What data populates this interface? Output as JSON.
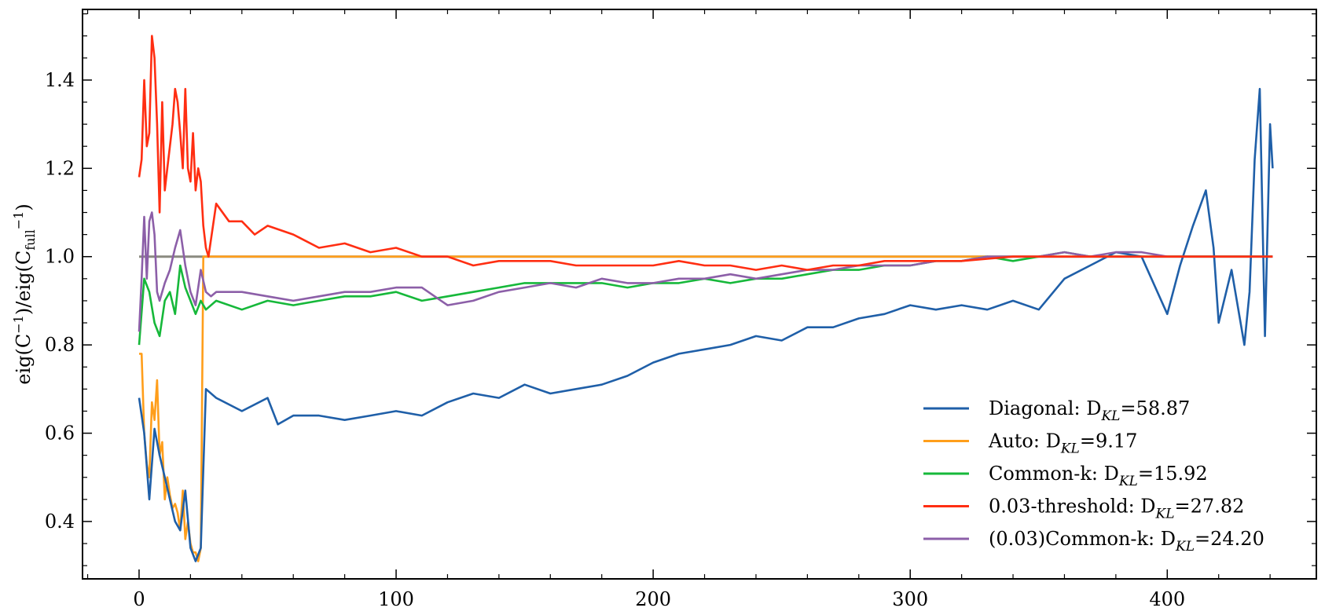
{
  "chart_data": {
    "type": "line",
    "title": "",
    "xlabel": "",
    "ylabel": "eig(C⁻¹)/eig(C_full⁻¹)",
    "ylabel_parts": {
      "main": "eig(C",
      "sup1": "−1",
      "mid": ")/eig(C",
      "sub": "full",
      "sup2": "−1",
      "end": ")"
    },
    "xlim": [
      -22,
      458
    ],
    "ylim": [
      0.27,
      1.56
    ],
    "xticks": [
      0,
      100,
      200,
      300,
      400
    ],
    "yticks": [
      0.4,
      0.6,
      0.8,
      1.0,
      1.2,
      1.4
    ],
    "xtick_labels": [
      "0",
      "100",
      "200",
      "300",
      "400"
    ],
    "ytick_labels": [
      "0.4",
      "0.6",
      "0.8",
      "1.0",
      "1.2",
      "1.4"
    ],
    "grid": false,
    "legend_position": "lower-right",
    "legend": [
      {
        "prefix": "Diagonal: D",
        "sub": "KL",
        "suffix": "=58.87",
        "color": "#1f5fa8"
      },
      {
        "prefix": "Auto: D",
        "sub": "KL",
        "suffix": "=9.17",
        "color": "#ff9e1b"
      },
      {
        "prefix": "Common-k: D",
        "sub": "KL",
        "suffix": "=15.92",
        "color": "#16b83a"
      },
      {
        "prefix": "0.03-threshold: D",
        "sub": "KL",
        "suffix": "=27.82",
        "color": "#ff2e12"
      },
      {
        "prefix": "(0.03)Common-k: D",
        "sub": "KL",
        "suffix": "=24.20",
        "color": "#8c5fa8"
      }
    ],
    "series": [
      {
        "name": "Diagonal: D_KL=58.87",
        "color": "#1f5fa8",
        "x": [
          0,
          2,
          4,
          6,
          8,
          10,
          12,
          14,
          16,
          18,
          20,
          22,
          24,
          26,
          30,
          40,
          50,
          54,
          60,
          70,
          80,
          90,
          100,
          110,
          120,
          130,
          140,
          150,
          160,
          170,
          180,
          190,
          200,
          210,
          220,
          230,
          240,
          250,
          260,
          270,
          280,
          290,
          300,
          310,
          320,
          330,
          340,
          350,
          360,
          370,
          380,
          390,
          400,
          405,
          410,
          415,
          418,
          420,
          425,
          430,
          432,
          434,
          436,
          438,
          440,
          441
        ],
        "y": [
          0.68,
          0.6,
          0.45,
          0.61,
          0.55,
          0.5,
          0.45,
          0.4,
          0.38,
          0.47,
          0.34,
          0.31,
          0.34,
          0.7,
          0.68,
          0.65,
          0.68,
          0.62,
          0.64,
          0.64,
          0.63,
          0.64,
          0.65,
          0.64,
          0.67,
          0.69,
          0.68,
          0.71,
          0.69,
          0.7,
          0.71,
          0.73,
          0.76,
          0.78,
          0.79,
          0.8,
          0.82,
          0.81,
          0.84,
          0.84,
          0.86,
          0.87,
          0.89,
          0.88,
          0.89,
          0.88,
          0.9,
          0.88,
          0.95,
          0.98,
          1.01,
          1.0,
          0.87,
          0.98,
          1.07,
          1.15,
          1.02,
          0.85,
          0.97,
          0.8,
          0.92,
          1.22,
          1.38,
          0.82,
          1.3,
          1.2
        ]
      },
      {
        "name": "Auto: D_KL=9.17",
        "color": "#ff9e1b",
        "x": [
          0,
          1,
          2,
          3,
          4,
          5,
          6,
          7,
          8,
          9,
          10,
          11,
          12,
          13,
          14,
          15,
          16,
          17,
          18,
          19,
          20,
          21,
          22,
          23,
          24,
          25,
          26,
          27,
          28,
          30,
          40,
          60,
          80,
          100,
          120,
          140,
          160,
          180,
          200,
          220,
          240,
          260,
          280,
          300,
          320,
          340,
          360,
          380,
          400,
          420,
          441
        ],
        "y": [
          0.78,
          0.78,
          0.6,
          0.53,
          0.5,
          0.67,
          0.63,
          0.72,
          0.55,
          0.58,
          0.45,
          0.5,
          0.46,
          0.43,
          0.44,
          0.42,
          0.38,
          0.47,
          0.36,
          0.4,
          0.35,
          0.33,
          0.33,
          0.31,
          0.34,
          1.0,
          1.0,
          1.0,
          1.0,
          1.0,
          1.0,
          1.0,
          1.0,
          1.0,
          1.0,
          1.0,
          1.0,
          1.0,
          1.0,
          1.0,
          1.0,
          1.0,
          1.0,
          1.0,
          1.0,
          1.0,
          1.0,
          1.0,
          1.0,
          1.0,
          1.0
        ]
      },
      {
        "name": "Common-k: D_KL=15.92",
        "color": "#16b83a",
        "x": [
          0,
          2,
          4,
          6,
          8,
          10,
          12,
          14,
          16,
          18,
          20,
          22,
          24,
          26,
          30,
          40,
          50,
          60,
          70,
          80,
          90,
          100,
          110,
          120,
          130,
          140,
          150,
          160,
          170,
          180,
          190,
          200,
          210,
          220,
          230,
          240,
          250,
          260,
          270,
          280,
          290,
          300,
          310,
          320,
          330,
          340,
          350,
          360,
          370,
          380,
          390,
          400,
          410,
          420,
          430,
          441
        ],
        "y": [
          0.8,
          0.95,
          0.92,
          0.85,
          0.82,
          0.9,
          0.92,
          0.87,
          0.98,
          0.93,
          0.9,
          0.87,
          0.9,
          0.88,
          0.9,
          0.88,
          0.9,
          0.89,
          0.9,
          0.91,
          0.91,
          0.92,
          0.9,
          0.91,
          0.92,
          0.93,
          0.94,
          0.94,
          0.94,
          0.94,
          0.93,
          0.94,
          0.94,
          0.95,
          0.94,
          0.95,
          0.95,
          0.96,
          0.97,
          0.97,
          0.98,
          0.98,
          0.99,
          0.99,
          1.0,
          0.99,
          1.0,
          1.01,
          1.0,
          1.0,
          1.0,
          1.0,
          1.0,
          1.0,
          1.0,
          1.0
        ]
      },
      {
        "name": "0.03-threshold: D_KL=27.82",
        "color": "#ff2e12",
        "x": [
          0,
          1,
          2,
          3,
          4,
          5,
          6,
          7,
          8,
          9,
          10,
          11,
          12,
          13,
          14,
          15,
          16,
          17,
          18,
          19,
          20,
          21,
          22,
          23,
          24,
          25,
          26,
          27,
          30,
          35,
          40,
          45,
          50,
          55,
          60,
          70,
          80,
          90,
          100,
          110,
          120,
          130,
          140,
          150,
          160,
          170,
          180,
          190,
          200,
          210,
          220,
          230,
          240,
          250,
          260,
          270,
          280,
          290,
          300,
          320,
          340,
          360,
          380,
          400,
          420,
          441
        ],
        "y": [
          1.18,
          1.22,
          1.4,
          1.25,
          1.28,
          1.5,
          1.45,
          1.3,
          1.1,
          1.35,
          1.15,
          1.2,
          1.25,
          1.3,
          1.38,
          1.35,
          1.28,
          1.2,
          1.38,
          1.2,
          1.17,
          1.28,
          1.15,
          1.2,
          1.17,
          1.07,
          1.02,
          1.0,
          1.12,
          1.08,
          1.08,
          1.05,
          1.07,
          1.06,
          1.05,
          1.02,
          1.03,
          1.01,
          1.02,
          1.0,
          1.0,
          0.98,
          0.99,
          0.99,
          0.99,
          0.98,
          0.98,
          0.98,
          0.98,
          0.99,
          0.98,
          0.98,
          0.97,
          0.98,
          0.97,
          0.98,
          0.98,
          0.99,
          0.99,
          0.99,
          1.0,
          1.0,
          1.0,
          1.0,
          1.0,
          1.0
        ]
      },
      {
        "name": "(0.03)Common-k: D_KL=24.20",
        "color": "#8c5fa8",
        "x": [
          0,
          1,
          2,
          3,
          4,
          5,
          6,
          7,
          8,
          10,
          12,
          14,
          16,
          18,
          20,
          22,
          24,
          26,
          28,
          30,
          40,
          50,
          60,
          70,
          80,
          90,
          100,
          110,
          120,
          130,
          140,
          150,
          160,
          170,
          180,
          190,
          200,
          210,
          220,
          230,
          240,
          250,
          260,
          270,
          280,
          290,
          300,
          310,
          320,
          330,
          340,
          350,
          360,
          370,
          380,
          390,
          400,
          410,
          420,
          430,
          441
        ],
        "y": [
          0.83,
          0.95,
          1.09,
          0.95,
          1.08,
          1.1,
          1.05,
          0.92,
          0.9,
          0.94,
          0.97,
          1.02,
          1.06,
          0.98,
          0.92,
          0.89,
          0.97,
          0.92,
          0.91,
          0.92,
          0.92,
          0.91,
          0.9,
          0.91,
          0.92,
          0.92,
          0.93,
          0.93,
          0.89,
          0.9,
          0.92,
          0.93,
          0.94,
          0.93,
          0.95,
          0.94,
          0.94,
          0.95,
          0.95,
          0.96,
          0.95,
          0.96,
          0.97,
          0.97,
          0.98,
          0.98,
          0.98,
          0.99,
          0.99,
          1.0,
          1.0,
          1.0,
          1.01,
          1.0,
          1.01,
          1.01,
          1.0,
          1.0,
          1.0,
          1.0,
          1.0
        ]
      },
      {
        "name": "",
        "color": "#8a8a80",
        "x": [
          0,
          441
        ],
        "y": [
          1.0,
          1.0
        ]
      }
    ]
  }
}
